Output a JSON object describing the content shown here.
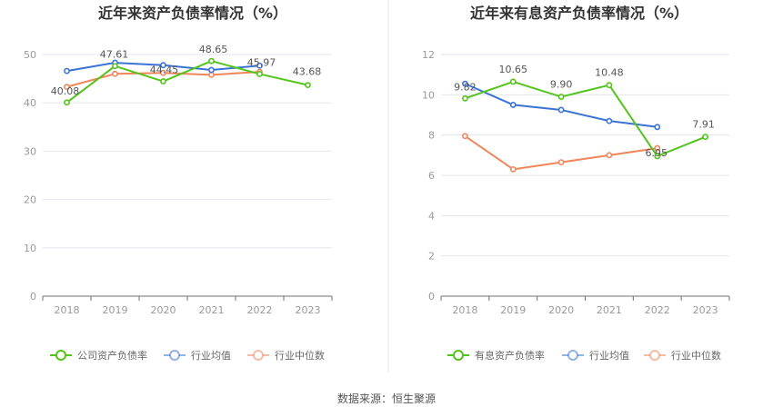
{
  "footer": {
    "source": "数据来源：恒生聚源"
  },
  "chart_data": [
    {
      "type": "line",
      "title": "近年来资产负债率情况（%）",
      "categories": [
        "2018",
        "2019",
        "2020",
        "2021",
        "2022",
        "2023"
      ],
      "ylim": [
        0,
        50
      ],
      "yticks": [
        0,
        10,
        20,
        30,
        40,
        50
      ],
      "grid": true,
      "legend_position": "bottom",
      "series": [
        {
          "name": "公司资产负债率",
          "color": "#52c41a",
          "values": [
            40.08,
            47.61,
            44.45,
            48.65,
            45.97,
            43.68
          ],
          "labels": [
            "40.08",
            "47.61",
            "44.45",
            "48.65",
            "45.97",
            "43.68"
          ]
        },
        {
          "name": "行业均值",
          "color": "#3a73d6",
          "values": [
            46.6,
            48.3,
            47.8,
            46.8,
            47.7,
            null
          ]
        },
        {
          "name": "行业中位数",
          "color": "#f0855a",
          "values": [
            43.3,
            46.0,
            46.2,
            45.8,
            46.4,
            null
          ]
        }
      ]
    },
    {
      "type": "line",
      "title": "近年来有息资产负债率情况（%）",
      "categories": [
        "2018",
        "2019",
        "2020",
        "2021",
        "2022",
        "2023"
      ],
      "ylim": [
        0,
        12
      ],
      "yticks": [
        0,
        2,
        4,
        6,
        8,
        10,
        12
      ],
      "grid": true,
      "legend_position": "bottom",
      "series": [
        {
          "name": "有息资产负债率",
          "color": "#52c41a",
          "values": [
            9.82,
            10.65,
            9.9,
            10.48,
            6.95,
            7.91
          ],
          "labels": [
            "9.82",
            "10.65",
            "9.90",
            "10.48",
            "6.95",
            "7.91"
          ]
        },
        {
          "name": "行业均值",
          "color": "#3a73d6",
          "values": [
            10.55,
            9.5,
            9.25,
            8.7,
            8.4,
            null
          ]
        },
        {
          "name": "行业中位数",
          "color": "#f0855a",
          "values": [
            7.95,
            6.3,
            6.65,
            7.0,
            7.35,
            null
          ]
        }
      ]
    }
  ]
}
